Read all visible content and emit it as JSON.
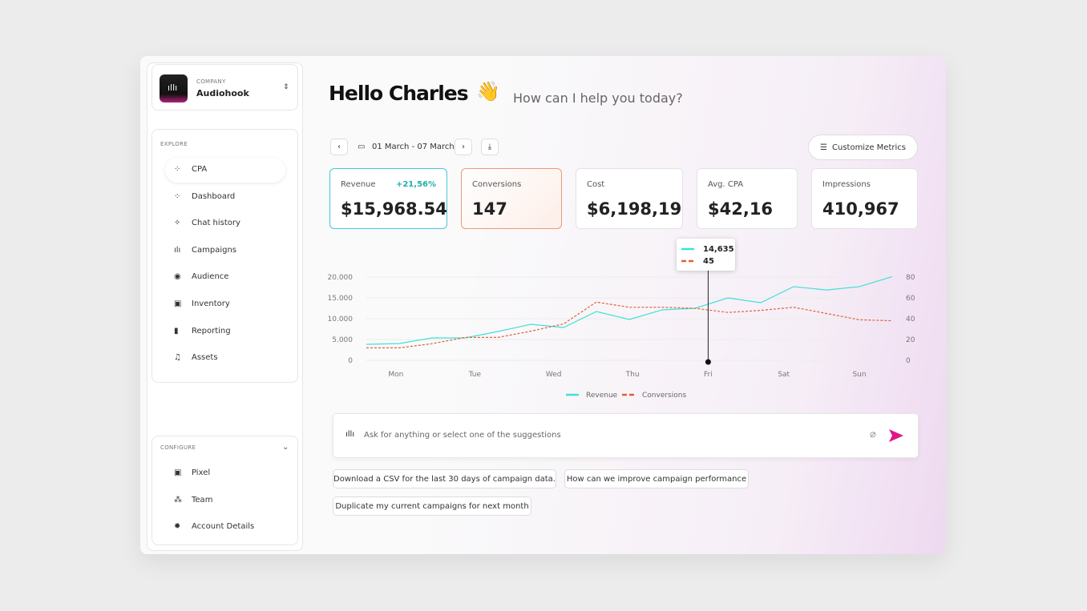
{
  "sidebar": {
    "company_label": "COMPANY",
    "company_name": "Audiohook",
    "explore_label": "EXPLORE",
    "explore_items": [
      "CPA",
      "Dashboard",
      "Chat history",
      "Campaigns",
      "Audience",
      "Inventory",
      "Reporting",
      "Assets"
    ],
    "configure_label": "CONFIGURE",
    "configure_items": [
      "Pixel",
      "Team",
      "Account Details"
    ]
  },
  "header": {
    "greeting": "Hello Charles",
    "emoji": "👋",
    "subtitle": "How can I help you today?"
  },
  "toolbar": {
    "date_range": "01 March - 07 March",
    "customize": "Customize Metrics"
  },
  "metrics": [
    {
      "label": "Revenue",
      "value": "$15,968.54",
      "change": "+21,56%"
    },
    {
      "label": "Conversions",
      "value": "147"
    },
    {
      "label": "Cost",
      "value": "$6,198,19"
    },
    {
      "label": "Avg. CPA",
      "value": "$42,16"
    },
    {
      "label": "Impressions",
      "value": "410,967"
    }
  ],
  "chart_data": {
    "type": "line",
    "x": [
      0,
      1,
      2,
      3,
      4,
      5,
      6,
      7,
      8,
      9,
      10,
      11,
      12,
      13,
      14,
      15,
      16
    ],
    "xlim": [
      0,
      16
    ],
    "xticks": [
      {
        "value": 0.9,
        "label": "Mon"
      },
      {
        "value": 3.3,
        "label": "Tue"
      },
      {
        "value": 5.7,
        "label": "Wed"
      },
      {
        "value": 8.1,
        "label": "Thu"
      },
      {
        "value": 10.4,
        "label": "Fri"
      },
      {
        "value": 12.7,
        "label": "Sat"
      },
      {
        "value": 15,
        "label": "Sun"
      }
    ],
    "ylim": [
      0,
      20000
    ],
    "yticks": [
      0,
      {
        "value": 5000,
        "label": "5.000"
      },
      {
        "value": 10000,
        "label": "10.000"
      },
      {
        "value": 15000,
        "label": "15.000"
      },
      {
        "value": 20000,
        "label": "20.000"
      }
    ],
    "y2lim": [
      0,
      80
    ],
    "y2ticks": [
      0,
      20,
      40,
      60,
      80
    ],
    "grid": true,
    "series": [
      {
        "name": "Revenue",
        "color": "#3fe0d6",
        "values": [
          3850,
          4040,
          5380,
          5380,
          6920,
          8650,
          7880,
          11730,
          9810,
          12120,
          12500,
          15000,
          13850,
          17700,
          16900,
          17700,
          20100
        ]
      },
      {
        "name": "Conversions",
        "color": "#e0603a",
        "axis": "y2",
        "values": [
          12,
          12,
          16,
          22,
          22,
          28,
          35,
          56,
          51,
          51,
          50,
          46,
          48,
          51,
          45,
          39,
          38
        ]
      }
    ],
    "tooltip": {
      "values": [
        14635,
        45
      ],
      "value_labels": [
        "14,635",
        "45"
      ]
    }
  },
  "chat": {
    "placeholder": "Ask for anything or select one of the suggestions",
    "suggestions": [
      "Download a CSV for the last 30 days of campaign data.",
      "How can we improve campaign performance",
      "Duplicate my current campaigns for next month"
    ]
  }
}
